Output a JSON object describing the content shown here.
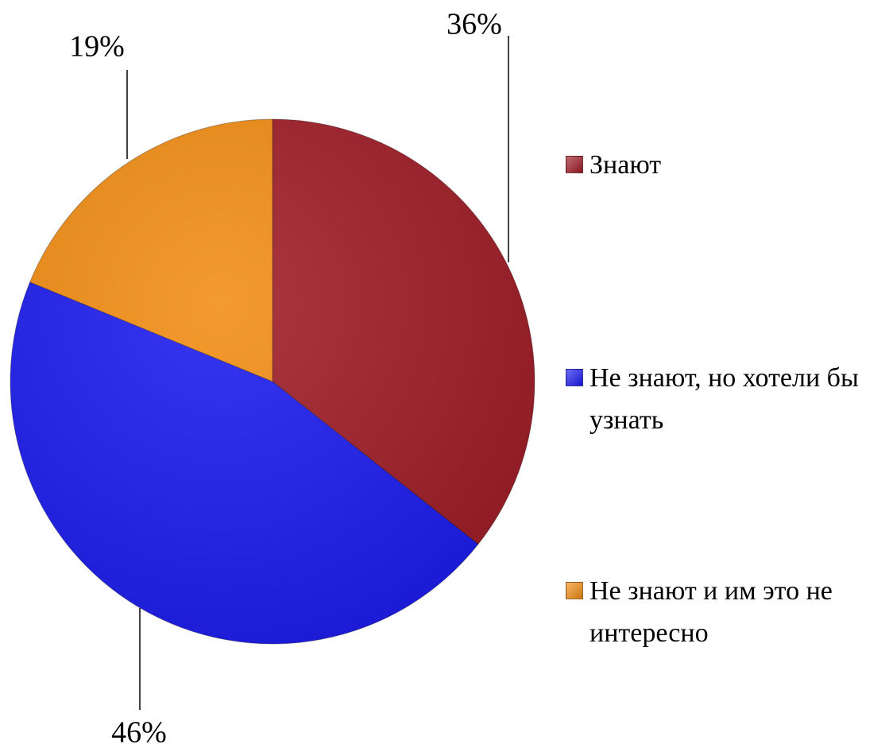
{
  "chart_data": {
    "type": "pie",
    "categories": [
      "Знают",
      "Не знают, но хотели бы узнать",
      "Не знают и им это не интересно"
    ],
    "values": [
      36,
      46,
      19
    ],
    "value_labels": [
      "36%",
      "46%",
      "19%"
    ],
    "colors": [
      "#a01c26",
      "#1c1cf0",
      "#f28c12"
    ],
    "legend": "right"
  }
}
